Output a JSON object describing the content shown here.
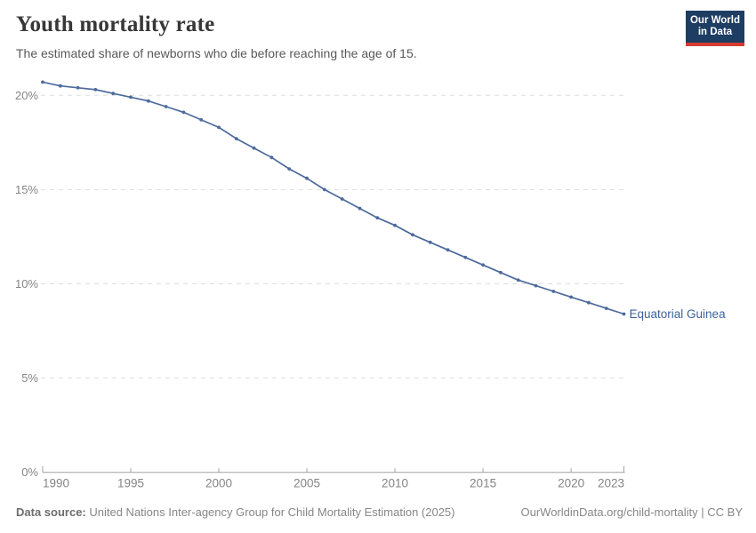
{
  "header": {
    "title": "Youth mortality rate",
    "subtitle": "The estimated share of newborns who die before reaching the age of 15.",
    "logo": {
      "line1": "Our World",
      "line2": "in Data"
    }
  },
  "chart_data": {
    "type": "line",
    "title": "Youth mortality rate",
    "xlabel": "",
    "ylabel": "",
    "xlim": [
      1990,
      2023
    ],
    "ylim": [
      0,
      21.5
    ],
    "x_ticks": [
      1990,
      1995,
      2000,
      2005,
      2010,
      2015,
      2020,
      2023
    ],
    "y_ticks": [
      0,
      5,
      10,
      15,
      20
    ],
    "y_tick_suffix": "%",
    "grid": "horizontal-dashed",
    "legend_position": "end-of-line-label",
    "series": [
      {
        "name": "Equatorial Guinea",
        "x": [
          1990,
          1991,
          1992,
          1993,
          1994,
          1995,
          1996,
          1997,
          1998,
          1999,
          2000,
          2001,
          2002,
          2003,
          2004,
          2005,
          2006,
          2007,
          2008,
          2009,
          2010,
          2011,
          2012,
          2013,
          2014,
          2015,
          2016,
          2017,
          2018,
          2019,
          2020,
          2021,
          2022,
          2023
        ],
        "values": [
          20.7,
          20.5,
          20.4,
          20.3,
          20.1,
          19.9,
          19.7,
          19.4,
          19.1,
          18.7,
          18.3,
          17.7,
          17.2,
          16.7,
          16.1,
          15.6,
          15.0,
          14.5,
          14.0,
          13.5,
          13.1,
          12.6,
          12.2,
          11.8,
          11.4,
          11.0,
          10.6,
          10.2,
          9.9,
          9.6,
          9.3,
          9.0,
          8.7,
          8.4
        ]
      }
    ]
  },
  "footer": {
    "source_label": "Data source:",
    "source_text": " United Nations Inter-agency Group for Child Mortality Estimation (2025)",
    "link": "OurWorldinData.org/child-mortality | CC BY"
  },
  "colors": {
    "line": "#4C6A9C",
    "entity_label": "#3d639c",
    "grid": "#dedede",
    "axis": "#a1a1a1",
    "tick_label": "#858585",
    "logo_bg": "#1d3d63",
    "logo_bar": "#d63a2f"
  }
}
